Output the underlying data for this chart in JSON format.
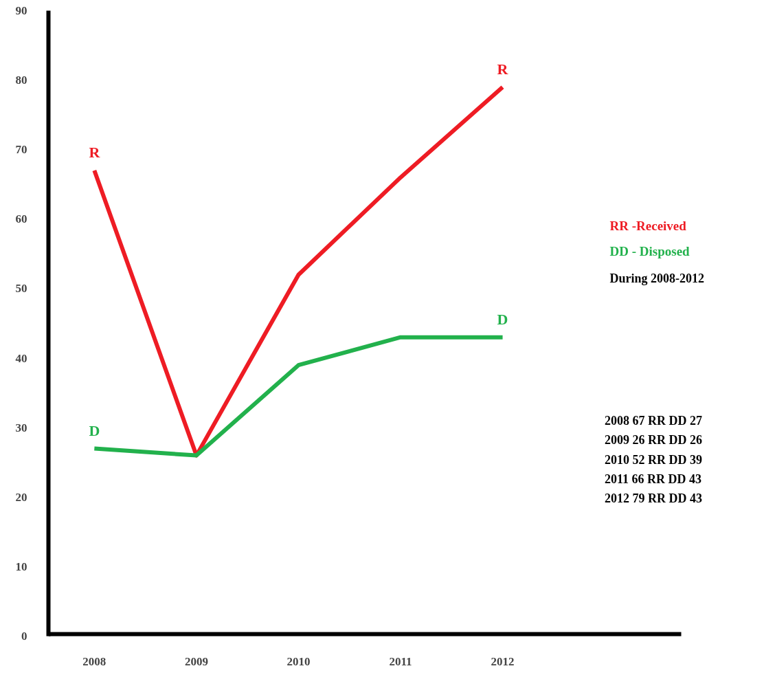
{
  "chart_data": {
    "type": "line",
    "categories": [
      "2008",
      "2009",
      "2010",
      "2011",
      "2012"
    ],
    "series": [
      {
        "name": "RR -Received",
        "color": "#ee1c24",
        "values": [
          67,
          26,
          52,
          66,
          79
        ]
      },
      {
        "name": "DD - Disposed",
        "color": "#22b14c",
        "values": [
          27,
          26,
          39,
          43,
          43
        ]
      }
    ],
    "annotations": [
      {
        "text": "R",
        "x": "2008",
        "y": 67
      },
      {
        "text": "R",
        "x": "2012",
        "y": 79
      },
      {
        "text": "D",
        "x": "2008",
        "y": 27
      },
      {
        "text": "D",
        "x": "2012",
        "y": 43
      },
      "During 2008-2012",
      "2008  67 RR   DD 27",
      "2009  26 RR   DD 26",
      "2010  52 RR   DD 39",
      "2011  66 RR   DD 43",
      "2012  79 RR   DD 43"
    ],
    "ylim": [
      0,
      90
    ],
    "yticks": [
      0,
      10,
      20,
      30,
      40,
      50,
      60,
      70,
      80,
      90
    ],
    "grid": false,
    "legend": "right",
    "marker": "none",
    "line_style": "solid"
  }
}
